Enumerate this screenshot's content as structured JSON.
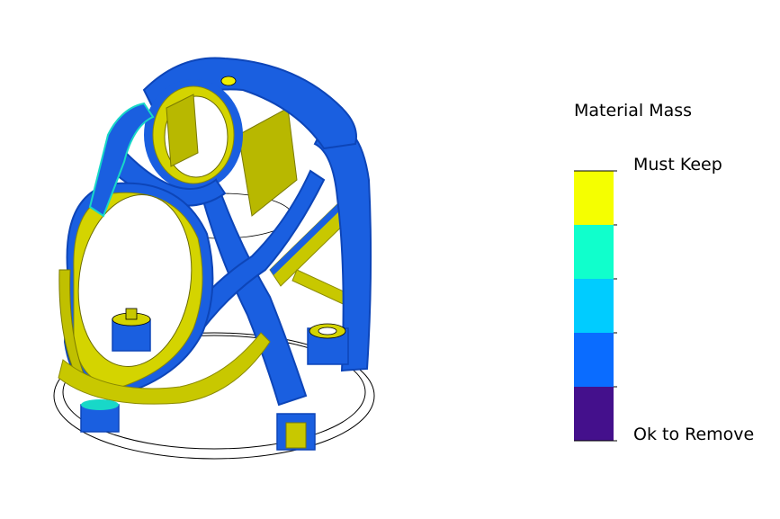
{
  "legend": {
    "title": "Material Mass",
    "label_top": "Must Keep",
    "label_bottom": "Ok to Remove",
    "bands": [
      {
        "color": "#f5ff00"
      },
      {
        "color": "#10ffcc"
      },
      {
        "color": "#00ccff"
      },
      {
        "color": "#0a6cff"
      },
      {
        "color": "#44108c"
      }
    ]
  },
  "colors": {
    "keep": "#c8c800",
    "keep_light": "#e8e800",
    "structure": "#1a5fe0",
    "structure_dark": "#0d45b8",
    "edge_cyan": "#18d8c8"
  }
}
